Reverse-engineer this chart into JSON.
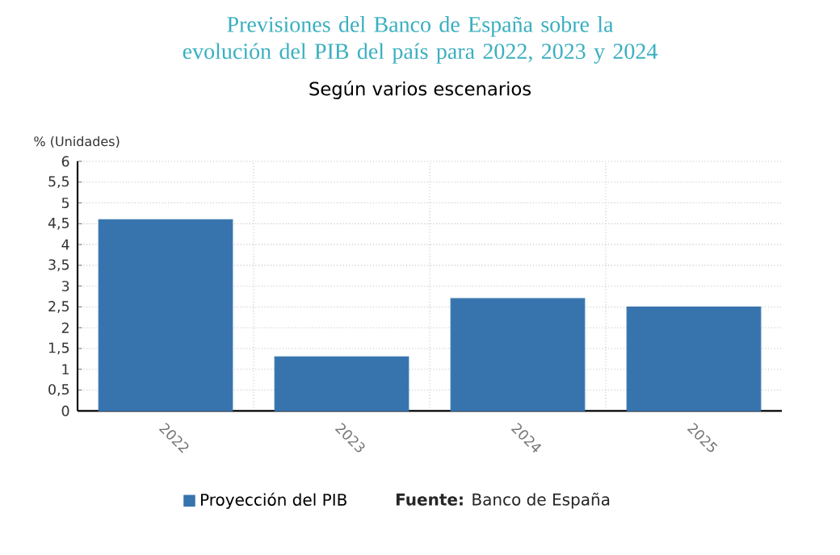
{
  "chart_data": {
    "type": "bar",
    "title": "Previsiones del Banco de España sobre la evolución del PIB del país para 2022, 2023 y 2024",
    "subtitle": "Según varios escenarios",
    "ylabel": "% (Unidades)",
    "categories": [
      "2022",
      "2023",
      "2024",
      "2025"
    ],
    "series": [
      {
        "name": "Proyección del PIB",
        "color": "#3774ae",
        "values": [
          4.6,
          1.3,
          2.7,
          2.5
        ]
      }
    ],
    "ylim": [
      0,
      6
    ],
    "yticks": [
      0,
      {
        "value": 0.5,
        "label": "0,5"
      },
      1,
      {
        "value": 1.5,
        "label": "1,5"
      },
      2,
      {
        "value": 2.5,
        "label": "2,5"
      },
      3,
      {
        "value": 3.5,
        "label": "3,5"
      },
      4,
      {
        "value": 4.5,
        "label": "4,5"
      },
      5,
      {
        "value": 5.5,
        "label": "5,5"
      },
      6
    ],
    "grid": true,
    "legend": "bottom",
    "annotations": [
      "**Fuente:** Banco de España"
    ]
  }
}
